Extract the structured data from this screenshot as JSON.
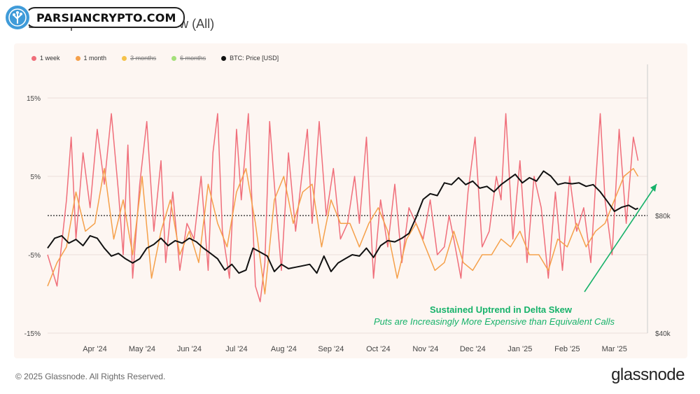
{
  "title": "BTC: Options 25 Delta Skew (All)",
  "badge": {
    "text": "PARSIANCRYPTO.COM"
  },
  "legend": [
    {
      "label": "1 week",
      "color": "#f06e7a",
      "struck": false
    },
    {
      "label": "1 month",
      "color": "#f5a04a",
      "struck": false
    },
    {
      "label": "3 months",
      "color": "#f5c24a",
      "struck": true
    },
    {
      "label": "6 months",
      "color": "#a4e07a",
      "struck": true
    },
    {
      "label": "BTC: Price [USD]",
      "color": "#111111",
      "struck": false
    }
  ],
  "footer": "© 2025 Glassnode. All Rights Reserved.",
  "brand": "glassnode",
  "annotation": {
    "title": "Sustained Uptrend in Delta Skew",
    "subtitle": "Puts are Increasingly More Expensive than Equivalent Calls",
    "color": "#17b26a"
  },
  "chart_data": {
    "type": "line",
    "y_left": {
      "ticks": [
        "15%",
        "5%",
        "-5%",
        "-15%"
      ],
      "tick_values": [
        15,
        5,
        -5,
        -15
      ],
      "range": [
        -15,
        15
      ]
    },
    "y_right": {
      "ticks": [
        "$80k",
        "$40k"
      ],
      "tick_values": [
        80000,
        40000
      ]
    },
    "x_ticks": [
      "Apr '24",
      "May '24",
      "Jun '24",
      "Jul '24",
      "Aug '24",
      "Sep '24",
      "Oct '24",
      "Nov '24",
      "Dec '24",
      "Jan '25",
      "Feb '25",
      "Mar '25"
    ],
    "x_tick_positions": [
      0.5,
      1.5,
      2.5,
      3.5,
      4.5,
      5.5,
      6.5,
      7.5,
      8.5,
      9.5,
      10.5,
      11.5
    ],
    "x_range": [
      -0.5,
      12.2
    ],
    "zero_line": 0,
    "series": [
      {
        "name": "1 week",
        "color": "#f06e7a",
        "x": [
          -0.5,
          -0.3,
          -0.1,
          0.0,
          0.1,
          0.25,
          0.4,
          0.55,
          0.7,
          0.85,
          1.0,
          1.1,
          1.2,
          1.3,
          1.45,
          1.6,
          1.75,
          1.9,
          2.0,
          2.15,
          2.3,
          2.45,
          2.6,
          2.75,
          2.9,
          3.0,
          3.1,
          3.2,
          3.35,
          3.5,
          3.6,
          3.75,
          3.9,
          4.0,
          4.1,
          4.2,
          4.3,
          4.45,
          4.6,
          4.75,
          4.9,
          5.0,
          5.1,
          5.25,
          5.4,
          5.55,
          5.7,
          5.85,
          6.0,
          6.1,
          6.25,
          6.4,
          6.55,
          6.7,
          6.85,
          7.0,
          7.15,
          7.3,
          7.45,
          7.6,
          7.75,
          7.9,
          8.0,
          8.1,
          8.25,
          8.4,
          8.55,
          8.7,
          8.85,
          9.0,
          9.1,
          9.2,
          9.35,
          9.5,
          9.65,
          9.8,
          9.95,
          10.1,
          10.25,
          10.4,
          10.55,
          10.7,
          10.85,
          11.0,
          11.1,
          11.2,
          11.3,
          11.45,
          11.6,
          11.75,
          11.9,
          12.0
        ],
        "values": [
          -5,
          -9,
          2,
          10,
          -3,
          8,
          1,
          11,
          4,
          13,
          3,
          -5,
          9,
          -8,
          4,
          12,
          -2,
          7,
          -6,
          3,
          -7,
          -1,
          -3,
          5,
          -7,
          8,
          13,
          -2,
          -8,
          11,
          2,
          13,
          -9,
          -11,
          -6,
          12,
          4,
          -7,
          8,
          -2,
          6,
          11,
          -1,
          12,
          0,
          6,
          -3,
          -1,
          5,
          -1,
          10,
          -8,
          2,
          -4,
          4,
          -6,
          1,
          -1,
          -3,
          2,
          -5,
          -4,
          0,
          -3,
          -8,
          3,
          10,
          -4,
          -2,
          5,
          2,
          13,
          -3,
          7,
          -6,
          5,
          1,
          -8,
          3,
          -7,
          5,
          -2,
          1,
          -6,
          4,
          13,
          2,
          -5,
          11,
          -1,
          10,
          7
        ],
        "note": "approximate reading of highly volatile daily series"
      },
      {
        "name": "1 month",
        "color": "#f5a04a",
        "x": [
          -0.5,
          -0.3,
          -0.1,
          0.1,
          0.3,
          0.5,
          0.7,
          0.9,
          1.1,
          1.3,
          1.5,
          1.7,
          1.9,
          2.1,
          2.3,
          2.5,
          2.7,
          2.9,
          3.1,
          3.3,
          3.5,
          3.7,
          3.9,
          4.1,
          4.3,
          4.5,
          4.7,
          4.9,
          5.1,
          5.3,
          5.5,
          5.7,
          5.9,
          6.1,
          6.3,
          6.5,
          6.7,
          6.9,
          7.1,
          7.3,
          7.5,
          7.7,
          7.9,
          8.1,
          8.3,
          8.5,
          8.7,
          8.9,
          9.1,
          9.3,
          9.5,
          9.7,
          9.9,
          10.1,
          10.3,
          10.5,
          10.7,
          10.9,
          11.1,
          11.3,
          11.5,
          11.7,
          11.9,
          12.0
        ],
        "values": [
          -9,
          -6,
          -4,
          3,
          -2,
          -1,
          6,
          -3,
          2,
          -5,
          5,
          -8,
          -2,
          2,
          -5,
          -2,
          -6,
          4,
          -1,
          -4,
          3,
          6,
          -1,
          -10,
          2,
          5,
          -1,
          3,
          4,
          -4,
          2,
          -1,
          -1,
          -4,
          -1,
          1,
          -2,
          -8,
          -3,
          -1,
          -4,
          -7,
          -6,
          -2,
          -6,
          -7,
          -5,
          -5,
          -3,
          -4,
          -2,
          -5,
          -5,
          -7,
          -3,
          -4,
          -1,
          -4,
          -2,
          -1,
          2,
          5,
          6,
          5
        ]
      },
      {
        "name": "BTC: Price [USD]",
        "color": "#111111",
        "axis": "right",
        "x": [
          -0.5,
          -0.35,
          -0.2,
          -0.05,
          0.1,
          0.25,
          0.4,
          0.55,
          0.7,
          0.85,
          1.0,
          1.15,
          1.3,
          1.45,
          1.6,
          1.75,
          1.9,
          2.05,
          2.2,
          2.35,
          2.5,
          2.65,
          2.8,
          2.95,
          3.1,
          3.25,
          3.4,
          3.55,
          3.7,
          3.85,
          4.0,
          4.15,
          4.3,
          4.45,
          4.6,
          4.75,
          4.9,
          5.05,
          5.2,
          5.35,
          5.5,
          5.65,
          5.8,
          5.95,
          6.1,
          6.25,
          6.4,
          6.55,
          6.7,
          6.85,
          7.0,
          7.15,
          7.3,
          7.45,
          7.6,
          7.75,
          7.9,
          8.05,
          8.2,
          8.35,
          8.5,
          8.65,
          8.8,
          8.95,
          9.1,
          9.25,
          9.4,
          9.55,
          9.7,
          9.85,
          10.0,
          10.15,
          10.3,
          10.45,
          10.6,
          10.75,
          10.9,
          11.05,
          11.2,
          11.35,
          11.5,
          11.65,
          11.8,
          11.95,
          12.0
        ],
        "values": [
          66000,
          70000,
          71000,
          68000,
          69500,
          67000,
          71000,
          70000,
          66000,
          63000,
          64000,
          62000,
          60500,
          62000,
          66000,
          67500,
          70000,
          67000,
          69000,
          68000,
          70000,
          68500,
          66000,
          64000,
          62000,
          58000,
          60000,
          57000,
          58000,
          66000,
          64500,
          63000,
          57500,
          60000,
          58500,
          59000,
          59500,
          60000,
          57000,
          63000,
          57500,
          60500,
          62000,
          63500,
          63000,
          66000,
          62500,
          67000,
          69000,
          68500,
          70000,
          72000,
          79000,
          88000,
          91000,
          90000,
          97000,
          96000,
          100000,
          96000,
          98000,
          94000,
          95000,
          92000,
          96000,
          99000,
          102000,
          97000,
          100000,
          98000,
          104000,
          101000,
          96000,
          97000,
          96500,
          97000,
          95000,
          96000,
          92000,
          87000,
          82000,
          84000,
          85000,
          83000,
          83500
        ],
        "note": "approximate reading"
      }
    ]
  }
}
